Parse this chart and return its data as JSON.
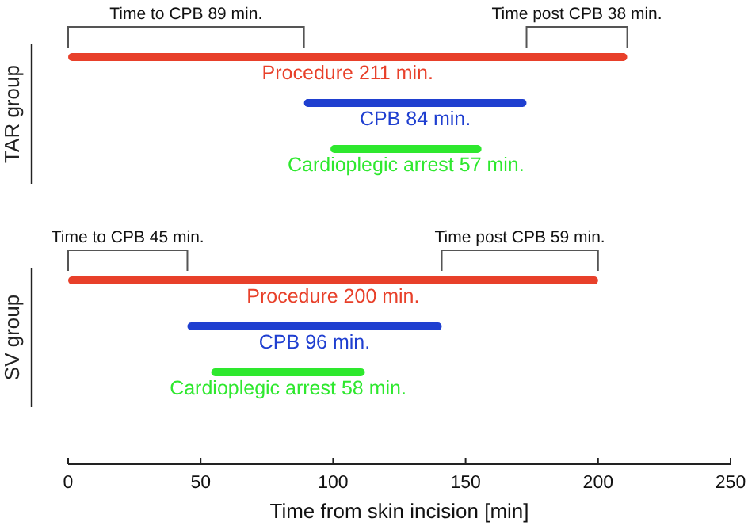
{
  "chart_data": {
    "type": "bar",
    "orientation": "horizontal",
    "xlabel": "Time from skin incision [min]",
    "categories": [
      null,
      null,
      null,
      null,
      null,
      null
    ],
    "values": [
      211,
      84,
      57,
      200,
      96,
      58
    ],
    "base": [
      0,
      89,
      99,
      0,
      45,
      54
    ],
    "colors": [
      "#e8402a",
      "#1f3fd0",
      "#2ee82e",
      "#e8402a",
      "#1f3fd0",
      "#2ee82e"
    ],
    "value_labels": [
      "Procedure 211 min.",
      "CPB 84 min.",
      "Cardioplegic arrest 57 min.",
      "Procedure 200 min.",
      "CPB 96 min.",
      "Cardioplegic arrest 58 min."
    ],
    "xlim": [
      0,
      250
    ],
    "xticks": [
      0,
      50,
      100,
      150,
      200,
      250
    ],
    "annotations": [
      "TAR group",
      "Time to CPB 89 min.",
      "Time post CPB 38 min.",
      "SV group",
      "Time to CPB 45 min.",
      "Time post CPB 59 min."
    ]
  }
}
